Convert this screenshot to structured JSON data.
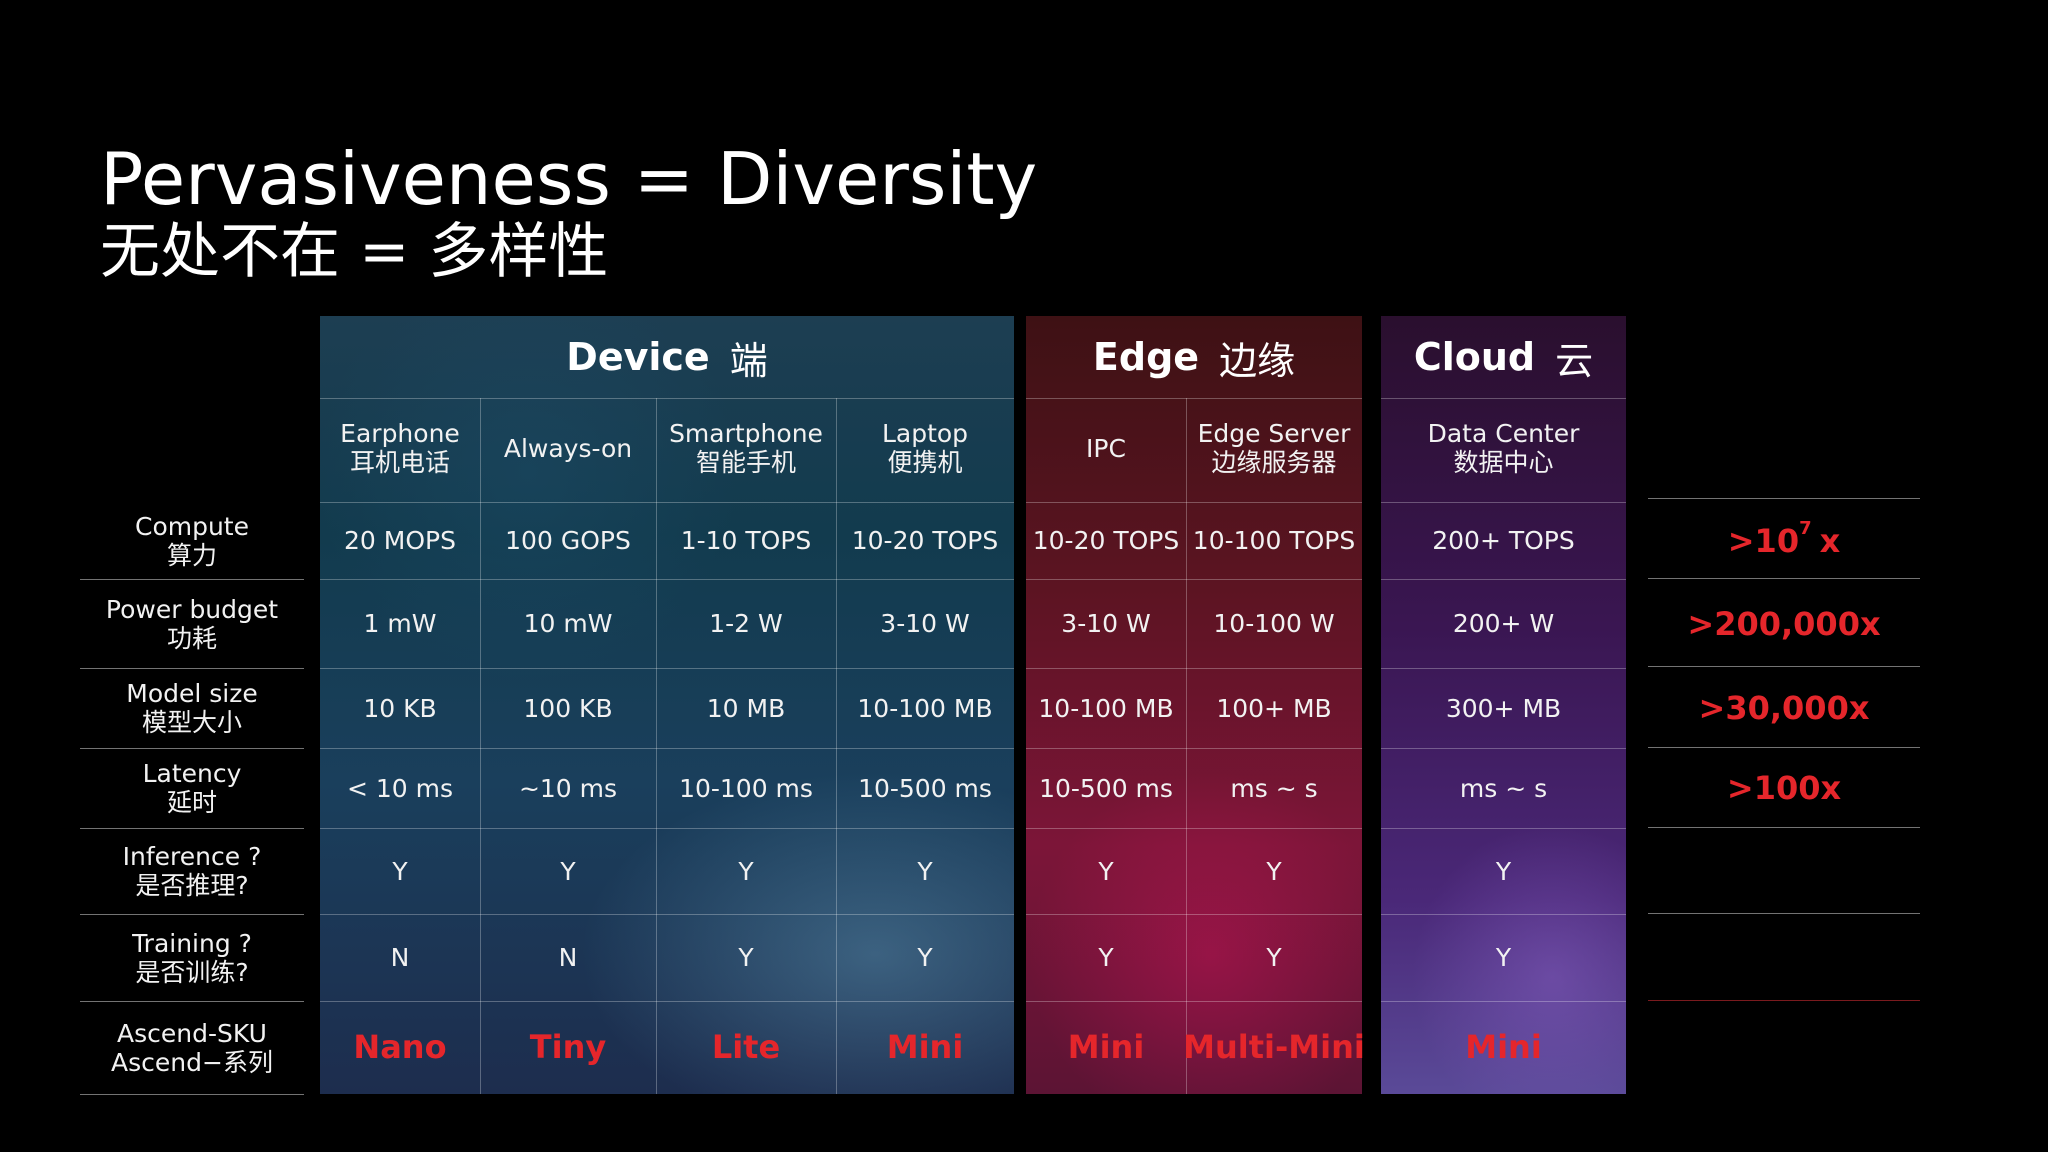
{
  "title": "Pervasiveness = Diversity",
  "subtitle": "无处不在 = 多样性",
  "groups": {
    "device": {
      "label": "Device",
      "label_zh": "端"
    },
    "edge": {
      "label": "Edge",
      "label_zh": "边缘"
    },
    "cloud": {
      "label": "Cloud",
      "label_zh": "云"
    }
  },
  "columns": [
    {
      "label": "Earphone",
      "label_zh": "耳机电话"
    },
    {
      "label": "Always-on",
      "label_zh": ""
    },
    {
      "label": "Smartphone",
      "label_zh": "智能手机"
    },
    {
      "label": "Laptop",
      "label_zh": "便携机"
    },
    {
      "label": "IPC",
      "label_zh": ""
    },
    {
      "label": "Edge Server",
      "label_zh": "边缘服务器"
    },
    {
      "label": "Data Center",
      "label_zh": "数据中心"
    }
  ],
  "rows": [
    {
      "label": "Compute",
      "label_zh": "算力",
      "values": [
        "20 MOPS",
        "100 GOPS",
        "1-10 TOPS",
        "10-20 TOPS",
        "10-20 TOPS",
        "10-100 TOPS",
        "200+ TOPS"
      ]
    },
    {
      "label": "Power budget",
      "label_zh": "功耗",
      "values": [
        "1 mW",
        "10 mW",
        "1-2 W",
        "3-10 W",
        "3-10 W",
        "10-100 W",
        "200+ W"
      ]
    },
    {
      "label": "Model size",
      "label_zh": "模型大小",
      "values": [
        "10 KB",
        "100 KB",
        "10 MB",
        "10-100 MB",
        "10-100 MB",
        "100+ MB",
        "300+ MB"
      ]
    },
    {
      "label": "Latency",
      "label_zh": "延时",
      "values": [
        "< 10 ms",
        "~10 ms",
        "10-100 ms",
        "10-500 ms",
        "10-500 ms",
        "ms ~ s",
        "ms ~ s"
      ]
    },
    {
      "label": "Inference ?",
      "label_zh": "是否推理?",
      "values": [
        "Y",
        "Y",
        "Y",
        "Y",
        "Y",
        "Y",
        "Y"
      ]
    },
    {
      "label": "Training ?",
      "label_zh": "是否训练?",
      "values": [
        "N",
        "N",
        "Y",
        "Y",
        "Y",
        "Y",
        "Y"
      ]
    },
    {
      "label": "Ascend-SKU",
      "label_zh": "Ascend−系列",
      "values": [
        "Nano",
        "Tiny",
        "Lite",
        "Mini",
        "Mini",
        "Multi-Mini",
        "Mini"
      ]
    }
  ],
  "ratios": {
    "compute": {
      "text": ">10",
      "sup": "7",
      "suffix": "x"
    },
    "power": ">200,000x",
    "model": ">30,000x",
    "latency": ">100x"
  },
  "colors": {
    "accent": "#e5262b",
    "background": "#000000"
  }
}
